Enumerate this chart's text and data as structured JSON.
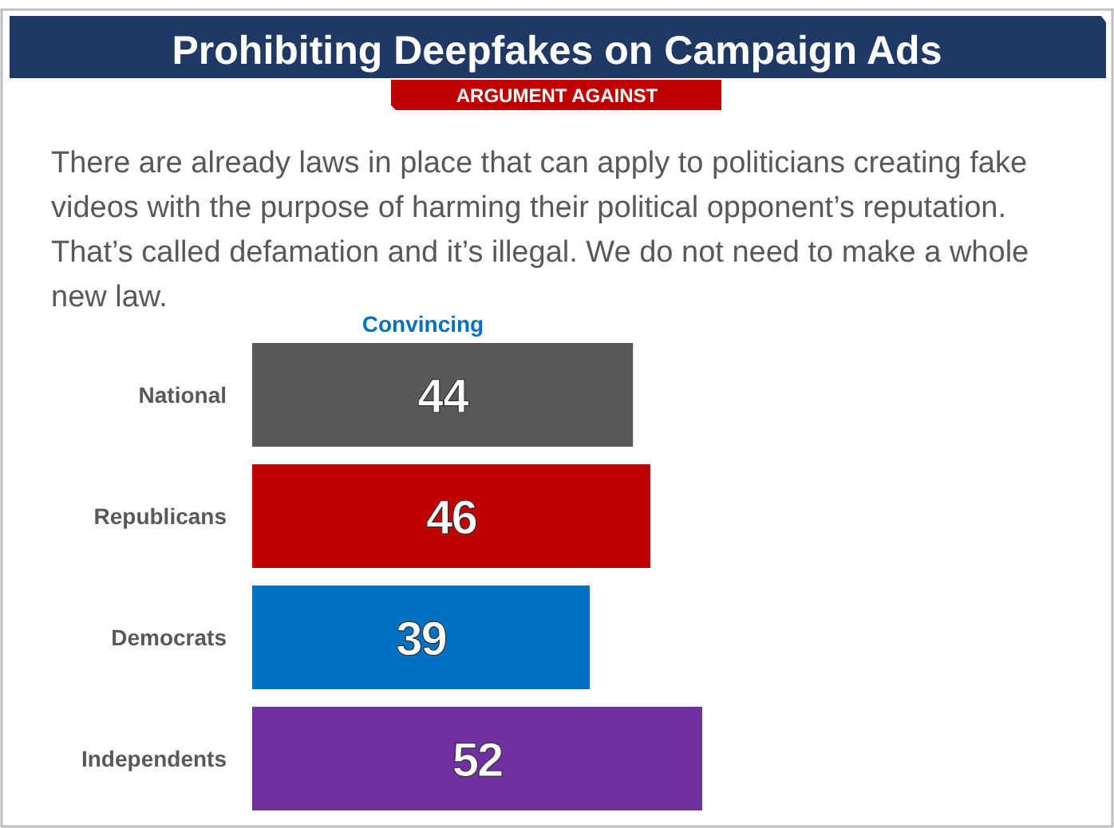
{
  "chart_data": {
    "type": "bar",
    "orientation": "horizontal",
    "title": "Prohibiting Deepfakes on Campaign Ads",
    "subtitle": "ARGUMENT AGAINST",
    "annotations": [
      "There are already laws in place that can apply to politicians creating fake videos with the purpose of harming their political opponent’s reputation. That’s called defamation and it’s illegal. We do not need to make a whole new law."
    ],
    "xlabel": "Convincing",
    "categories": [
      "National",
      "Republicans",
      "Democrats",
      "Independents"
    ],
    "values": [
      44,
      46,
      39,
      52
    ],
    "colors": [
      "#595959",
      "#c00000",
      "#0070c0",
      "#7030a0"
    ],
    "data_labels": true
  }
}
